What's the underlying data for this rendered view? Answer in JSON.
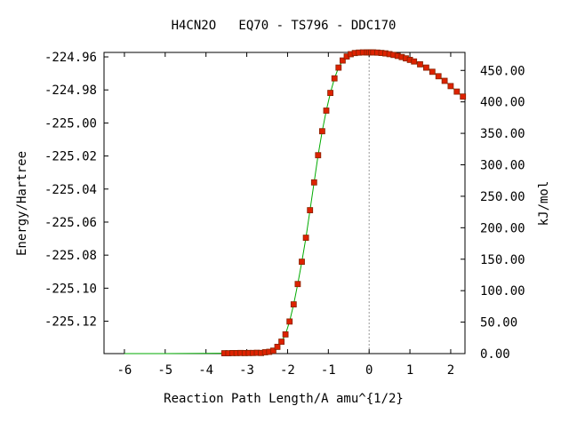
{
  "chart_data": {
    "type": "line",
    "title": "H4CN2O   EQ70 - TS796 - DDC170",
    "xlabel": "Reaction Path Length/A amu^{1/2}",
    "ylabel": "Energy/Hartree",
    "y2label": "kJ/mol",
    "xlim": [
      -6.5,
      2.35
    ],
    "ylim": [
      -225.1396,
      -224.9573
    ],
    "y2lim": [
      0,
      478.6
    ],
    "x_ticks": [
      {
        "v": -6,
        "label": "-6"
      },
      {
        "v": -5,
        "label": "-5"
      },
      {
        "v": -4,
        "label": "-4"
      },
      {
        "v": -3,
        "label": "-3"
      },
      {
        "v": -2,
        "label": "-2"
      },
      {
        "v": -1,
        "label": "-1"
      },
      {
        "v": 0,
        "label": "0"
      },
      {
        "v": 1,
        "label": "1"
      },
      {
        "v": 2,
        "label": "2"
      }
    ],
    "y_ticks": [
      {
        "v": -224.96,
        "label": "-224.96"
      },
      {
        "v": -224.98,
        "label": "-224.98"
      },
      {
        "v": -225.0,
        "label": "-225.00"
      },
      {
        "v": -225.02,
        "label": "-225.02"
      },
      {
        "v": -225.04,
        "label": "-225.04"
      },
      {
        "v": -225.06,
        "label": "-225.06"
      },
      {
        "v": -225.08,
        "label": "-225.08"
      },
      {
        "v": -225.1,
        "label": "-225.10"
      },
      {
        "v": -225.12,
        "label": "-225.12"
      }
    ],
    "y2_ticks": [
      {
        "v": 0,
        "label": "0.00"
      },
      {
        "v": 50,
        "label": "50.00"
      },
      {
        "v": 100,
        "label": "100.00"
      },
      {
        "v": 150,
        "label": "150.00"
      },
      {
        "v": 200,
        "label": "200.00"
      },
      {
        "v": 250,
        "label": "250.00"
      },
      {
        "v": 300,
        "label": "300.00"
      },
      {
        "v": 350,
        "label": "350.00"
      },
      {
        "v": 400,
        "label": "400.00"
      },
      {
        "v": 450,
        "label": "450.00"
      }
    ],
    "ts_marker_x": 0,
    "colors": {
      "curve": "#00aa00",
      "point_fill": "#dd2200",
      "point_edge": "#882200",
      "ts_line": "#999999",
      "axes": "#000000"
    },
    "series": [
      {
        "x": [
          -6.0,
          -5.0,
          -4.0,
          -3.55,
          -3.45,
          -3.35,
          -3.25,
          -3.15,
          -3.05,
          -2.95,
          -2.85,
          -2.75,
          -2.65,
          -2.55,
          -2.45,
          -2.35,
          -2.25,
          -2.15,
          -2.05,
          -1.95,
          -1.85,
          -1.75,
          -1.65,
          -1.55,
          -1.45,
          -1.35,
          -1.25,
          -1.15,
          -1.05,
          -0.95,
          -0.85,
          -0.75,
          -0.65,
          -0.55,
          -0.45,
          -0.35,
          -0.25,
          -0.15,
          -0.05,
          0.0,
          0.05,
          0.1,
          0.2,
          0.3,
          0.4,
          0.5,
          0.6,
          0.7,
          0.8,
          0.9,
          1.0,
          1.1,
          1.25,
          1.4,
          1.55,
          1.7,
          1.85,
          2.0,
          2.15,
          2.3
        ],
        "y": [
          -225.1396,
          -225.1396,
          -225.1395,
          -225.1394,
          -225.1394,
          -225.1393,
          -225.1393,
          -225.1392,
          -225.1393,
          -225.1392,
          -225.1392,
          -225.1391,
          -225.1392,
          -225.1388,
          -225.1385,
          -225.1378,
          -225.1355,
          -225.1324,
          -225.128,
          -225.1202,
          -225.1098,
          -225.0975,
          -225.084,
          -225.0695,
          -225.0528,
          -225.036,
          -225.0195,
          -225.005,
          -224.9925,
          -224.9818,
          -224.973,
          -224.9665,
          -224.9622,
          -224.9598,
          -224.9584,
          -224.9577,
          -224.9574,
          -224.9573,
          -224.9573,
          -224.9573,
          -224.9573,
          -224.9573,
          -224.9574,
          -224.9576,
          -224.9579,
          -224.9583,
          -224.9588,
          -224.9594,
          -224.9601,
          -224.9609,
          -224.9618,
          -224.9628,
          -224.9645,
          -224.9665,
          -224.969,
          -224.9717,
          -224.9745,
          -224.9777,
          -224.981,
          -224.984
        ]
      }
    ]
  }
}
